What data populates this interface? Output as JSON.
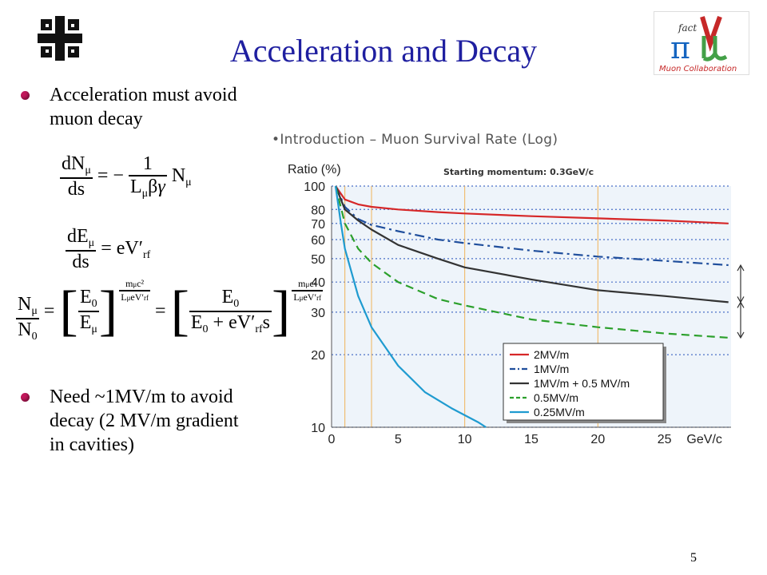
{
  "slide": {
    "title": "Acceleration and Decay",
    "page_number": "5"
  },
  "bullets": [
    {
      "text_line1": "Acceleration must avoid",
      "text_line2": "muon decay"
    },
    {
      "text_line1": "Need  ~1MV/m to avoid",
      "text_line2": "decay (2 MV/m gradient",
      "text_line3": "in cavities)"
    }
  ],
  "logos": {
    "left": "fermilab-logo",
    "right_text": "Muon Collaboration",
    "right_mark": "fact"
  },
  "equations": {
    "eq1": "dN_μ/ds = − 1/(L_μ βγ) N_μ",
    "eq2": "dE_μ/ds = eV′_rf",
    "eq3": "N_μ/N_0 = [E_0/E_μ]^(m_μc²/(L_μ eV′_rf)) = [E_0/(E_0 + eV′_rf s)]^(m_μc²/(L_μ eV′_rf))"
  },
  "chart_heading": "•Introduction – Muon Survival Rate (Log)",
  "chart_data": {
    "type": "line",
    "title": "Starting momentum: 0.3GeV/c",
    "ylabel": "Ratio (%)",
    "xlabel": "GeV/c",
    "yscale": "log",
    "ylim": [
      10,
      100
    ],
    "xlim": [
      0,
      30
    ],
    "xticks": [
      0,
      5,
      10,
      15,
      20,
      25
    ],
    "yticks": [
      10,
      20,
      30,
      40,
      50,
      60,
      70,
      80,
      100
    ],
    "vertical_guides": [
      1,
      3,
      10,
      20
    ],
    "legend_position": "bottom-right",
    "series": [
      {
        "name": "2MV/m",
        "color": "#d62728",
        "style": "solid",
        "x": [
          0.3,
          1,
          2,
          3,
          5,
          8,
          10,
          15,
          20,
          25,
          29.8
        ],
        "y": [
          100,
          88,
          84,
          82,
          80,
          78,
          77,
          75,
          73.5,
          72,
          70
        ]
      },
      {
        "name": "1MV/m",
        "color": "#1f4e9c",
        "style": "dashdot",
        "x": [
          0.3,
          1,
          2,
          3,
          5,
          8,
          10,
          15,
          20,
          25,
          29.8
        ],
        "y": [
          100,
          82,
          73,
          69,
          65,
          60,
          58,
          54,
          51,
          49,
          47
        ]
      },
      {
        "name": "1MV/m + 0.5 MV/m",
        "color": "#333333",
        "style": "solid",
        "x": [
          0.3,
          1,
          2,
          3,
          5,
          8,
          10,
          15,
          20,
          25,
          29.8
        ],
        "y": [
          100,
          80,
          72,
          66,
          57,
          50,
          46,
          41,
          37,
          35,
          33
        ]
      },
      {
        "name": "0.5MV/m",
        "color": "#2ca02c",
        "style": "dashed",
        "x": [
          0.3,
          1,
          2,
          3,
          5,
          8,
          10,
          15,
          20,
          25,
          29.8
        ],
        "y": [
          100,
          70,
          55,
          48,
          40,
          34,
          32,
          28,
          26,
          24.5,
          23.5
        ]
      },
      {
        "name": "0.25MV/m",
        "color": "#1f9bd0",
        "style": "solid",
        "x": [
          0.3,
          0.7,
          1,
          2,
          3,
          5,
          7,
          9,
          11,
          11.6
        ],
        "y": [
          100,
          70,
          55,
          35,
          26,
          18,
          14,
          12,
          10.5,
          10
        ]
      }
    ]
  }
}
